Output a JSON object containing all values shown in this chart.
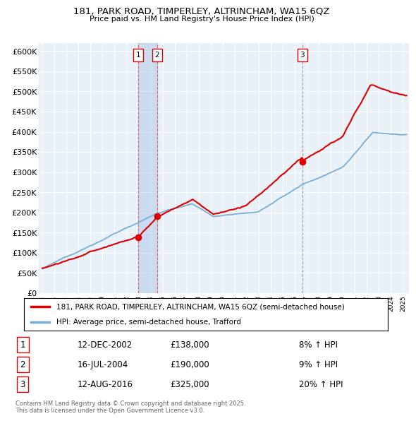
{
  "title": "181, PARK ROAD, TIMPERLEY, ALTRINCHAM, WA15 6QZ",
  "subtitle": "Price paid vs. HM Land Registry's House Price Index (HPI)",
  "ylabel_ticks": [
    "£0",
    "£50K",
    "£100K",
    "£150K",
    "£200K",
    "£250K",
    "£300K",
    "£350K",
    "£400K",
    "£450K",
    "£500K",
    "£550K",
    "£600K"
  ],
  "ylim": [
    0,
    620000
  ],
  "xlim_start": 1994.7,
  "xlim_end": 2025.5,
  "legend_line1": "181, PARK ROAD, TIMPERLEY, ALTRINCHAM, WA15 6QZ (semi-detached house)",
  "legend_line2": "HPI: Average price, semi-detached house, Trafford",
  "sale1_label": "1",
  "sale1_date": "12-DEC-2002",
  "sale1_price": "£138,000",
  "sale1_pct": "8% ↑ HPI",
  "sale2_label": "2",
  "sale2_date": "16-JUL-2004",
  "sale2_price": "£190,000",
  "sale2_pct": "9% ↑ HPI",
  "sale3_label": "3",
  "sale3_date": "12-AUG-2016",
  "sale3_price": "£325,000",
  "sale3_pct": "20% ↑ HPI",
  "footer": "Contains HM Land Registry data © Crown copyright and database right 2025.\nThis data is licensed under the Open Government Licence v3.0.",
  "red_color": "#dd0000",
  "blue_color": "#7aaed6",
  "sale_marker_dates": [
    2002.96,
    2004.54,
    2016.62
  ],
  "sale_marker_values": [
    138000,
    190000,
    325000
  ],
  "background_color": "#ffffff",
  "grid_color": "#c8d8e8",
  "chart_bg": "#e8f0f8"
}
